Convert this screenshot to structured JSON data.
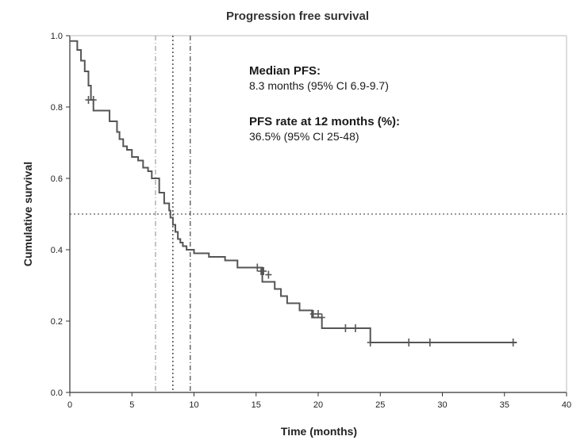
{
  "chart_data": {
    "type": "line",
    "title": "Progression free survival",
    "xlabel": "Time (months)",
    "ylabel": "Cumulative survival",
    "xlim": [
      0,
      40
    ],
    "ylim": [
      0,
      1.0
    ],
    "xticks": [
      0,
      5,
      10,
      15,
      20,
      25,
      30,
      35,
      40
    ],
    "yticks": [
      0.0,
      0.2,
      0.4,
      0.6,
      0.8,
      1.0
    ],
    "ytick_labels": [
      "0.0",
      "0.2",
      "0.4",
      "0.6",
      "0.8",
      "1.0"
    ],
    "grid": false,
    "annotations": [
      {
        "heading": "Median PFS:",
        "text": "8.3 months (95% CI 6.9-9.7)"
      },
      {
        "heading": "PFS rate at 12 months (%):",
        "text": "36.5% (95% CI 25-48)"
      }
    ],
    "reference_lines": {
      "horizontal_y": 0.5,
      "median_x": 8.3,
      "ci_low_x": 6.9,
      "ci_high_x": 9.7
    },
    "series": [
      {
        "step_x": [
          0,
          0.6,
          0.9,
          1.2,
          1.5,
          1.7,
          1.9,
          3.2,
          3.8,
          4.0,
          4.3,
          4.6,
          5.0,
          5.5,
          5.9,
          6.3,
          6.6,
          7.2,
          7.6,
          8.0,
          8.1,
          8.3,
          8.5,
          8.7,
          8.9,
          9.1,
          9.4,
          10.0,
          10.5,
          11.2,
          12.5,
          13.5,
          15.5,
          16.5,
          17.0,
          17.5,
          18.5,
          19.5,
          20.3,
          24.2,
          36
        ],
        "step_y": [
          0.985,
          0.96,
          0.93,
          0.9,
          0.86,
          0.82,
          0.79,
          0.76,
          0.73,
          0.71,
          0.69,
          0.68,
          0.66,
          0.65,
          0.63,
          0.62,
          0.6,
          0.56,
          0.53,
          0.51,
          0.49,
          0.47,
          0.45,
          0.43,
          0.42,
          0.41,
          0.4,
          0.39,
          0.39,
          0.38,
          0.37,
          0.35,
          0.31,
          0.29,
          0.27,
          0.25,
          0.23,
          0.21,
          0.18,
          0.14,
          0.14
        ],
        "censored_x": [
          1.5,
          1.9,
          15.1,
          15.4,
          15.6,
          16.0,
          19.6,
          20.0,
          20.3,
          22.2,
          23.0,
          24.2,
          27.3,
          29.0,
          35.7
        ],
        "censored_y": [
          0.82,
          0.82,
          0.35,
          0.34,
          0.34,
          0.33,
          0.22,
          0.22,
          0.21,
          0.18,
          0.18,
          0.14,
          0.14,
          0.14,
          0.14
        ]
      }
    ]
  }
}
